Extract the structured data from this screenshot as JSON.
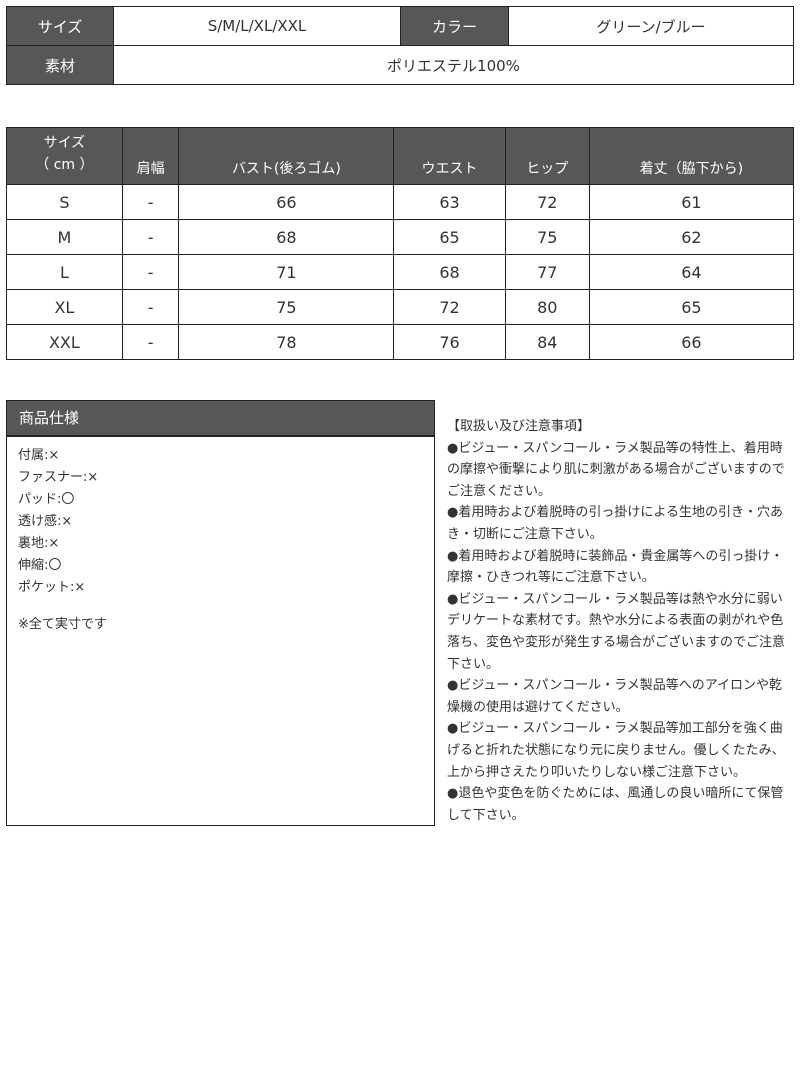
{
  "info": {
    "size_label": "サイズ",
    "size_value": "S/M/L/XL/XXL",
    "color_label": "カラー",
    "color_value": "グリーン/ブルー",
    "material_label": "素材",
    "material_value": "ポリエステル100%"
  },
  "size_table": {
    "headers": [
      "サイズ\n（ cm ）",
      "肩幅",
      "バスト(後ろゴム)",
      "ウエスト",
      "ヒップ",
      "着丈（脇下から)"
    ],
    "rows": [
      [
        "S",
        "-",
        "66",
        "63",
        "72",
        "61"
      ],
      [
        "M",
        "-",
        "68",
        "65",
        "75",
        "62"
      ],
      [
        "L",
        "-",
        "71",
        "68",
        "77",
        "64"
      ],
      [
        "XL",
        "-",
        "75",
        "72",
        "80",
        "65"
      ],
      [
        "XXL",
        "-",
        "78",
        "76",
        "84",
        "66"
      ]
    ]
  },
  "spec": {
    "title": "商品仕様",
    "items": [
      "付属:×",
      "ファスナー:×",
      "パッド:〇",
      "透け感:×",
      "裏地:×",
      "伸縮:〇",
      "ポケット:×"
    ],
    "note": "※全て実寸です"
  },
  "care": {
    "title": "【取扱い及び注意事項】",
    "items": [
      "●ビジュー・スパンコール・ラメ製品等の特性上、着用時の摩擦や衝撃により肌に刺激がある場合がございますのでご注意ください。",
      "●着用時および着脱時の引っ掛けによる生地の引き・穴あき・切断にご注意下さい。",
      "●着用時および着脱時に装飾品・貴金属等への引っ掛け・摩擦・ひきつれ等にご注意下さい。",
      "●ビジュー・スパンコール・ラメ製品等は熱や水分に弱いデリケートな素材です。熱や水分による表面の剥がれや色落ち、変色や変形が発生する場合がございますのでご注意下さい。",
      "●ビジュー・スパンコール・ラメ製品等へのアイロンや乾燥機の使用は避けてください。",
      "●ビジュー・スパンコール・ラメ製品等加工部分を強く曲げると折れた状態になり元に戻りません。優しくたたみ、上から押さえたり叩いたりしない様ご注意下さい。",
      "●退色や変色を防ぐためには、風通しの良い暗所にて保管して下さい。"
    ]
  },
  "colors": {
    "header_bg": "#575757"
  }
}
